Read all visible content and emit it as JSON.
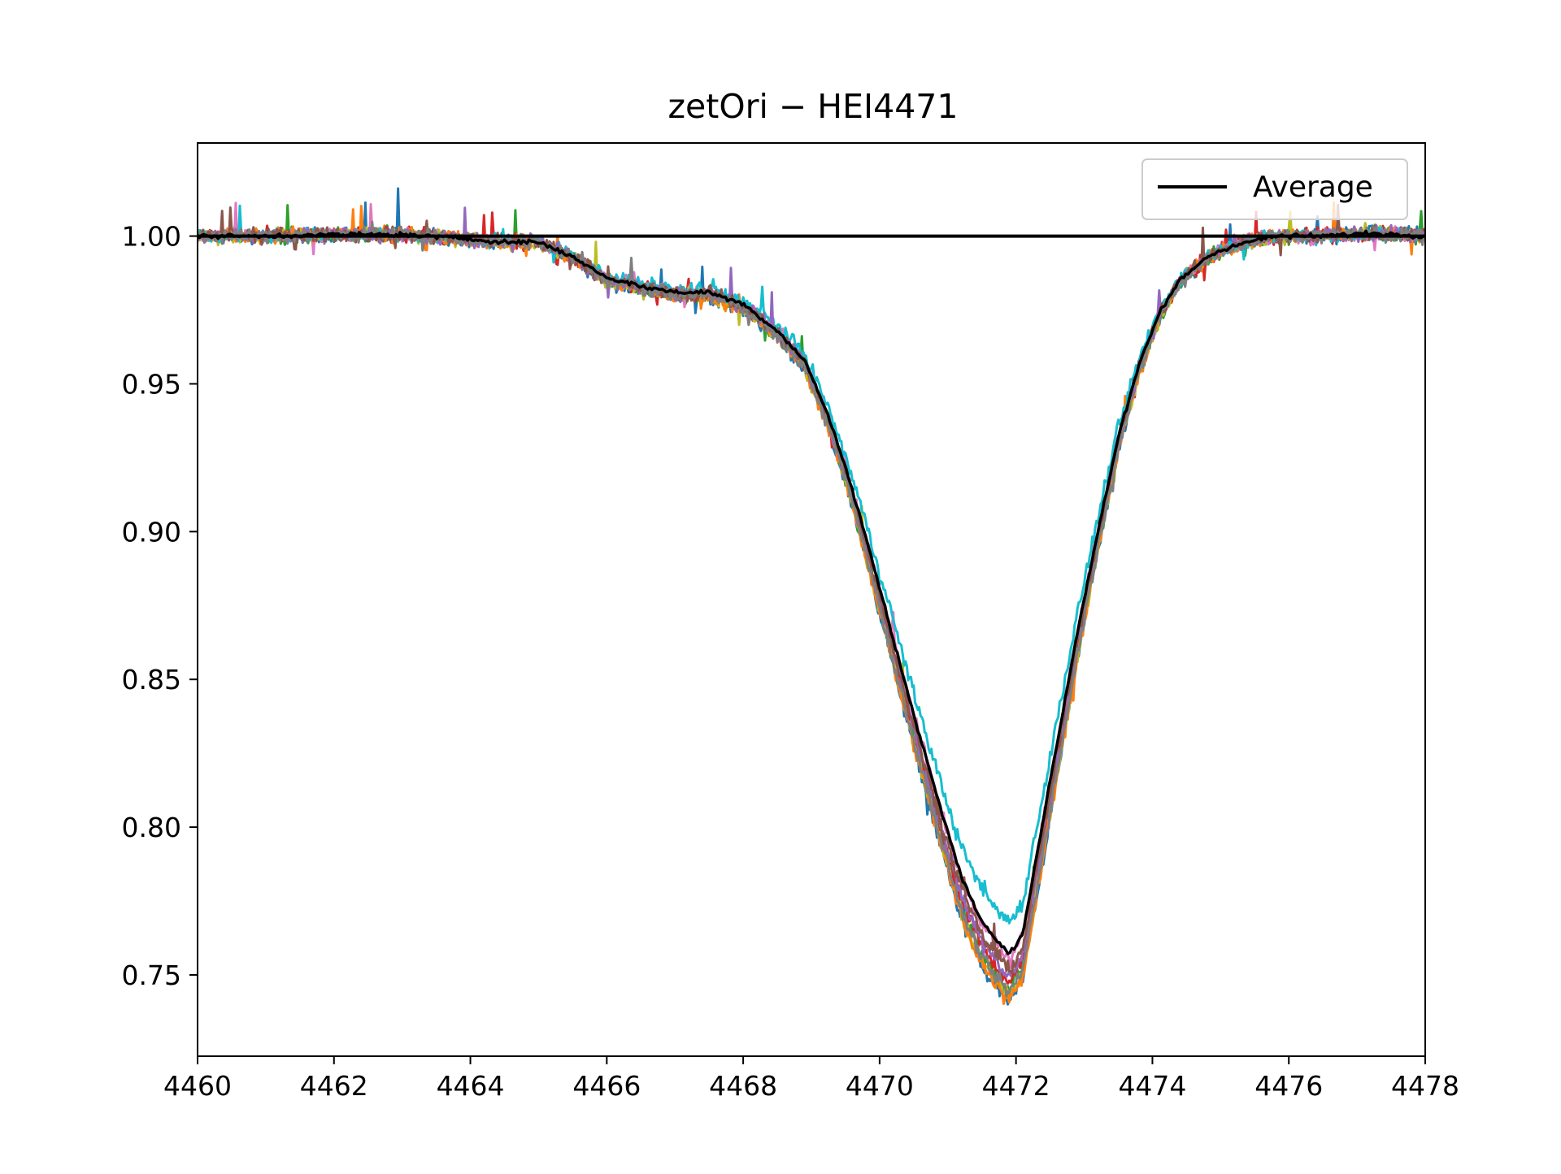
{
  "chart_data": {
    "type": "line",
    "title": "zetOri − HEI4471",
    "xlabel": "",
    "ylabel": "",
    "xlim": [
      4460,
      4478
    ],
    "ylim": [
      0.7225,
      1.0315
    ],
    "x_ticks": [
      4460,
      4462,
      4464,
      4466,
      4468,
      4470,
      4472,
      4474,
      4476,
      4478
    ],
    "x_tick_labels": [
      "4460",
      "4462",
      "4464",
      "4466",
      "4468",
      "4470",
      "4472",
      "4474",
      "4476",
      "4478"
    ],
    "y_ticks": [
      0.75,
      0.8,
      0.85,
      0.9,
      0.95,
      1.0
    ],
    "y_tick_labels": [
      "0.75",
      "0.80",
      "0.85",
      "0.90",
      "0.95",
      "1.00"
    ],
    "grid": false,
    "legend": {
      "position": "upper right",
      "entries": [
        "Average"
      ]
    },
    "reference_line": {
      "y": 1.0,
      "color": "#000000"
    },
    "average_profile": {
      "name": "Average",
      "color": "#000000",
      "x": [
        4460.0,
        4461.0,
        4462.0,
        4463.0,
        4464.0,
        4464.5,
        4465.0,
        4465.5,
        4466.0,
        4466.5,
        4467.0,
        4467.5,
        4468.0,
        4468.5,
        4468.9,
        4469.2,
        4469.5,
        4469.8,
        4470.0,
        4470.3,
        4470.6,
        4470.9,
        4471.2,
        4471.5,
        4471.7,
        4471.9,
        4472.1,
        4472.3,
        4472.6,
        4472.9,
        4473.2,
        4473.5,
        4473.8,
        4474.1,
        4474.4,
        4474.8,
        4475.2,
        4475.8,
        4476.5,
        4477.2,
        4478.0
      ],
      "y": [
        1.0,
        1.0,
        1.0005,
        1.0005,
        0.999,
        0.998,
        0.998,
        0.993,
        0.986,
        0.983,
        0.981,
        0.981,
        0.977,
        0.968,
        0.958,
        0.942,
        0.922,
        0.898,
        0.881,
        0.855,
        0.83,
        0.806,
        0.783,
        0.768,
        0.762,
        0.757,
        0.764,
        0.79,
        0.828,
        0.866,
        0.9,
        0.932,
        0.956,
        0.974,
        0.985,
        0.993,
        0.997,
        1.0,
        1.0,
        1.001,
        1.0
      ]
    },
    "observation_series": {
      "count": 10,
      "colors": [
        "#1f77b4",
        "#ff7f0e",
        "#2ca02c",
        "#d62728",
        "#9467bd",
        "#8c564b",
        "#e377c2",
        "#7f7f7f",
        "#bcbd22",
        "#17becf"
      ],
      "minimum_depth": [
        0.741,
        0.742,
        0.745,
        0.748,
        0.75,
        0.752,
        0.756,
        0.744,
        0.743,
        0.768
      ],
      "noise_amplitude": 0.003
    }
  }
}
